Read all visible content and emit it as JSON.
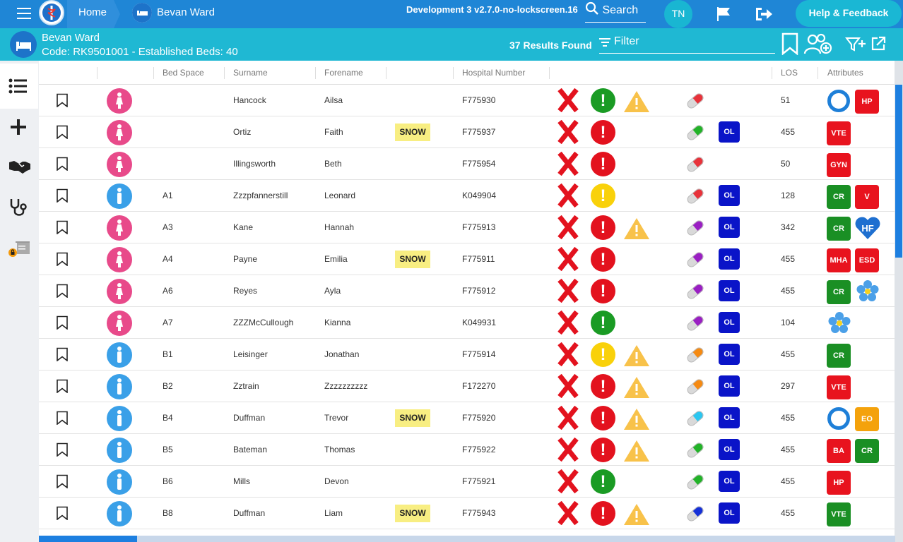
{
  "top": {
    "home": "Home",
    "ward_crumb": "Bevan Ward",
    "environment": "Development 3 v2.7.0-no-lockscreen.16",
    "search_label": "Search",
    "user_initials": "TN",
    "help": "Help & Feedback"
  },
  "ward": {
    "name": "Bevan Ward",
    "code": "Code: RK9501001 - Established Beds: 40",
    "results": "37 Results Found",
    "filter_label": "Filter"
  },
  "columns": [
    "Bed Space",
    "Surname",
    "Forename",
    "Hospital Number",
    "LOS",
    "Attributes"
  ],
  "rows": [
    {
      "gender": "f",
      "bed": "",
      "surname": "Hancock",
      "forename": "Ailsa",
      "snow": "",
      "hosp": "F775930",
      "status": "green",
      "warn": true,
      "pill": "red",
      "ol": "",
      "los": "51",
      "attrs": [
        {
          "k": "ring"
        },
        {
          "k": "red",
          "t": "HP"
        }
      ]
    },
    {
      "gender": "f",
      "bed": "",
      "surname": "Ortiz",
      "forename": "Faith",
      "snow": "SNOW",
      "hosp": "F775937",
      "status": "red",
      "warn": false,
      "pill": "green",
      "ol": "OL",
      "los": "455",
      "attrs": [
        {
          "k": "red",
          "t": "VTE"
        }
      ]
    },
    {
      "gender": "f",
      "bed": "",
      "surname": "Illingsworth",
      "forename": "Beth",
      "snow": "",
      "hosp": "F775954",
      "status": "red",
      "warn": false,
      "pill": "red",
      "ol": "",
      "los": "50",
      "attrs": [
        {
          "k": "red",
          "t": "GYN"
        }
      ]
    },
    {
      "gender": "m",
      "bed": "A1",
      "surname": "Zzzpfannerstill",
      "forename": "Leonard",
      "snow": "",
      "hosp": "K049904",
      "status": "yellow",
      "warn": false,
      "pill": "red",
      "ol": "OL",
      "los": "128",
      "attrs": [
        {
          "k": "green",
          "t": "CR"
        },
        {
          "k": "red",
          "t": "V"
        }
      ]
    },
    {
      "gender": "f",
      "bed": "A3",
      "surname": "Kane",
      "forename": "Hannah",
      "snow": "",
      "hosp": "F775913",
      "status": "red",
      "warn": true,
      "pill": "purple",
      "ol": "OL",
      "los": "342",
      "attrs": [
        {
          "k": "green",
          "t": "CR"
        },
        {
          "k": "blue",
          "t": "HF"
        }
      ]
    },
    {
      "gender": "f",
      "bed": "A4",
      "surname": "Payne",
      "forename": "Emilia",
      "snow": "SNOW",
      "hosp": "F775911",
      "status": "red",
      "warn": false,
      "pill": "purple",
      "ol": "OL",
      "los": "455",
      "attrs": [
        {
          "k": "red",
          "t": "MHA"
        },
        {
          "k": "red",
          "t": "ESD"
        }
      ]
    },
    {
      "gender": "f",
      "bed": "A6",
      "surname": "Reyes",
      "forename": "Ayla",
      "snow": "",
      "hosp": "F775912",
      "status": "red",
      "warn": false,
      "pill": "purple",
      "ol": "OL",
      "los": "455",
      "attrs": [
        {
          "k": "green",
          "t": "CR"
        },
        {
          "k": "flower"
        }
      ]
    },
    {
      "gender": "f",
      "bed": "A7",
      "surname": "ZZZMcCullough",
      "forename": "Kianna",
      "snow": "",
      "hosp": "K049931",
      "status": "green",
      "warn": false,
      "pill": "purple",
      "ol": "OL",
      "los": "104",
      "attrs": [
        {
          "k": "flower"
        }
      ]
    },
    {
      "gender": "m",
      "bed": "B1",
      "surname": "Leisinger",
      "forename": "Jonathan",
      "snow": "",
      "hosp": "F775914",
      "status": "yellow",
      "warn": true,
      "pill": "orange",
      "ol": "OL",
      "los": "455",
      "attrs": [
        {
          "k": "green",
          "t": "CR"
        }
      ]
    },
    {
      "gender": "m",
      "bed": "B2",
      "surname": "Zztrain",
      "forename": "Zzzzzzzzzz",
      "snow": "",
      "hosp": "F172270",
      "status": "red",
      "warn": true,
      "pill": "orange",
      "ol": "OL",
      "los": "297",
      "attrs": [
        {
          "k": "red",
          "t": "VTE"
        }
      ]
    },
    {
      "gender": "m",
      "bed": "B4",
      "surname": "Duffman",
      "forename": "Trevor",
      "snow": "SNOW",
      "hosp": "F775920",
      "status": "red",
      "warn": true,
      "pill": "cyan",
      "ol": "OL",
      "los": "455",
      "attrs": [
        {
          "k": "ring"
        },
        {
          "k": "orange",
          "t": "EO"
        }
      ]
    },
    {
      "gender": "m",
      "bed": "B5",
      "surname": "Bateman",
      "forename": "Thomas",
      "snow": "",
      "hosp": "F775922",
      "status": "red",
      "warn": true,
      "pill": "green",
      "ol": "OL",
      "los": "455",
      "attrs": [
        {
          "k": "red",
          "t": "BA"
        },
        {
          "k": "green",
          "t": "CR"
        }
      ]
    },
    {
      "gender": "m",
      "bed": "B6",
      "surname": "Mills",
      "forename": "Devon",
      "snow": "",
      "hosp": "F775921",
      "status": "green",
      "warn": false,
      "pill": "green",
      "ol": "OL",
      "los": "455",
      "attrs": [
        {
          "k": "red",
          "t": "HP"
        }
      ]
    },
    {
      "gender": "m",
      "bed": "B8",
      "surname": "Duffman",
      "forename": "Liam",
      "snow": "SNOW",
      "hosp": "F775943",
      "status": "red",
      "warn": true,
      "pill": "blue",
      "ol": "OL",
      "los": "455",
      "attrs": [
        {
          "k": "green",
          "t": "VTE"
        }
      ]
    }
  ]
}
